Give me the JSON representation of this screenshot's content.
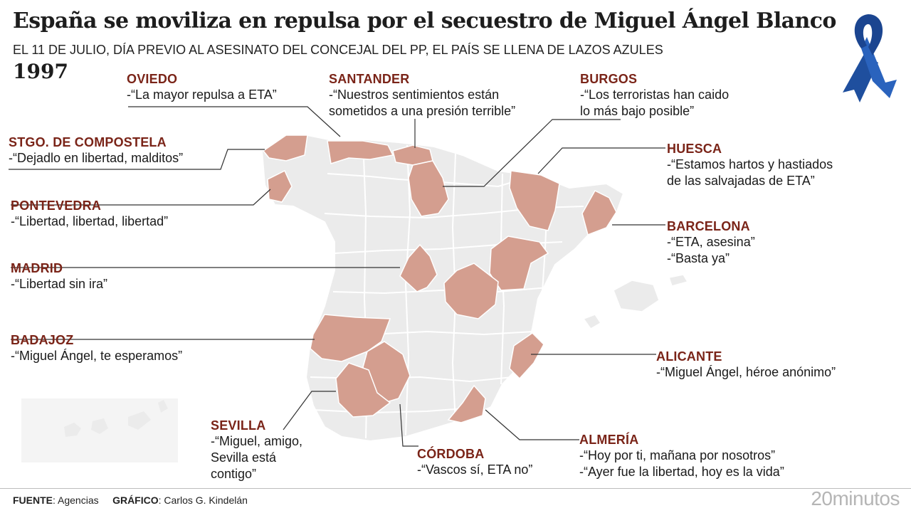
{
  "header": {
    "title": "España se moviliza en repulsa por el secuestro de Miguel Ángel Blanco",
    "subtitle": "EL 11 DE JULIO, DÍA PREVIO AL ASESINATO DEL CONCEJAL DEL PP, EL PAÍS SE LLENA DE LAZOS AZULES",
    "year": "1997"
  },
  "colors": {
    "highlight": "#d49e8f",
    "province": "#ebebeb",
    "border": "#ffffff",
    "city_label": "#7a2418",
    "ribbon": "#1f4f9e"
  },
  "cities": {
    "oviedo": {
      "name": "OVIEDO",
      "quotes": [
        "-“La mayor repulsa a ETA”"
      ]
    },
    "santander": {
      "name": "SANTANDER",
      "quotes": [
        "-“Nuestros sentimientos están",
        "sometidos a una presión terrible”"
      ]
    },
    "burgos": {
      "name": "BURGOS",
      "quotes": [
        "-“Los terroristas han caido",
        "lo más bajo posible”"
      ]
    },
    "compostela": {
      "name": "STGO. DE COMPOSTELA",
      "quotes": [
        "-“Dejadlo en libertad, malditos”"
      ]
    },
    "huesca": {
      "name": "HUESCA",
      "quotes": [
        "-“Estamos hartos y hastiados",
        "de las salvajadas de ETA”"
      ]
    },
    "pontevedra": {
      "name": "PONTEVEDRA",
      "quotes": [
        "-“Libertad, libertad, libertad”"
      ]
    },
    "barcelona": {
      "name": "BARCELONA",
      "quotes": [
        "-“ETA, asesina”",
        "-“Basta ya”"
      ]
    },
    "madrid": {
      "name": "MADRID",
      "quotes": [
        "-“Libertad sin ira”"
      ]
    },
    "badajoz": {
      "name": "BADAJOZ",
      "quotes": [
        "-“Miguel Ángel, te esperamos”"
      ]
    },
    "alicante": {
      "name": "ALICANTE",
      "quotes": [
        "-“Miguel Ángel, héroe anónimo”"
      ]
    },
    "sevilla": {
      "name": "SEVILLA",
      "quotes": [
        "-“Miguel, amigo,",
        "Sevilla está",
        "contigo”"
      ]
    },
    "cordoba": {
      "name": "CÓRDOBA",
      "quotes": [
        "-“Vascos sí, ETA no”"
      ]
    },
    "almeria": {
      "name": "ALMERÍA",
      "quotes": [
        "-“Hoy por ti, mañana por nosotros”",
        "-“Ayer fue la libertad, hoy es la vida”"
      ]
    }
  },
  "footer": {
    "source_label": "FUENTE",
    "source_value": "Agencias",
    "graphic_label": "GRÁFICO",
    "graphic_value": "Carlos G. Kindelán",
    "brand": "20minutos"
  }
}
